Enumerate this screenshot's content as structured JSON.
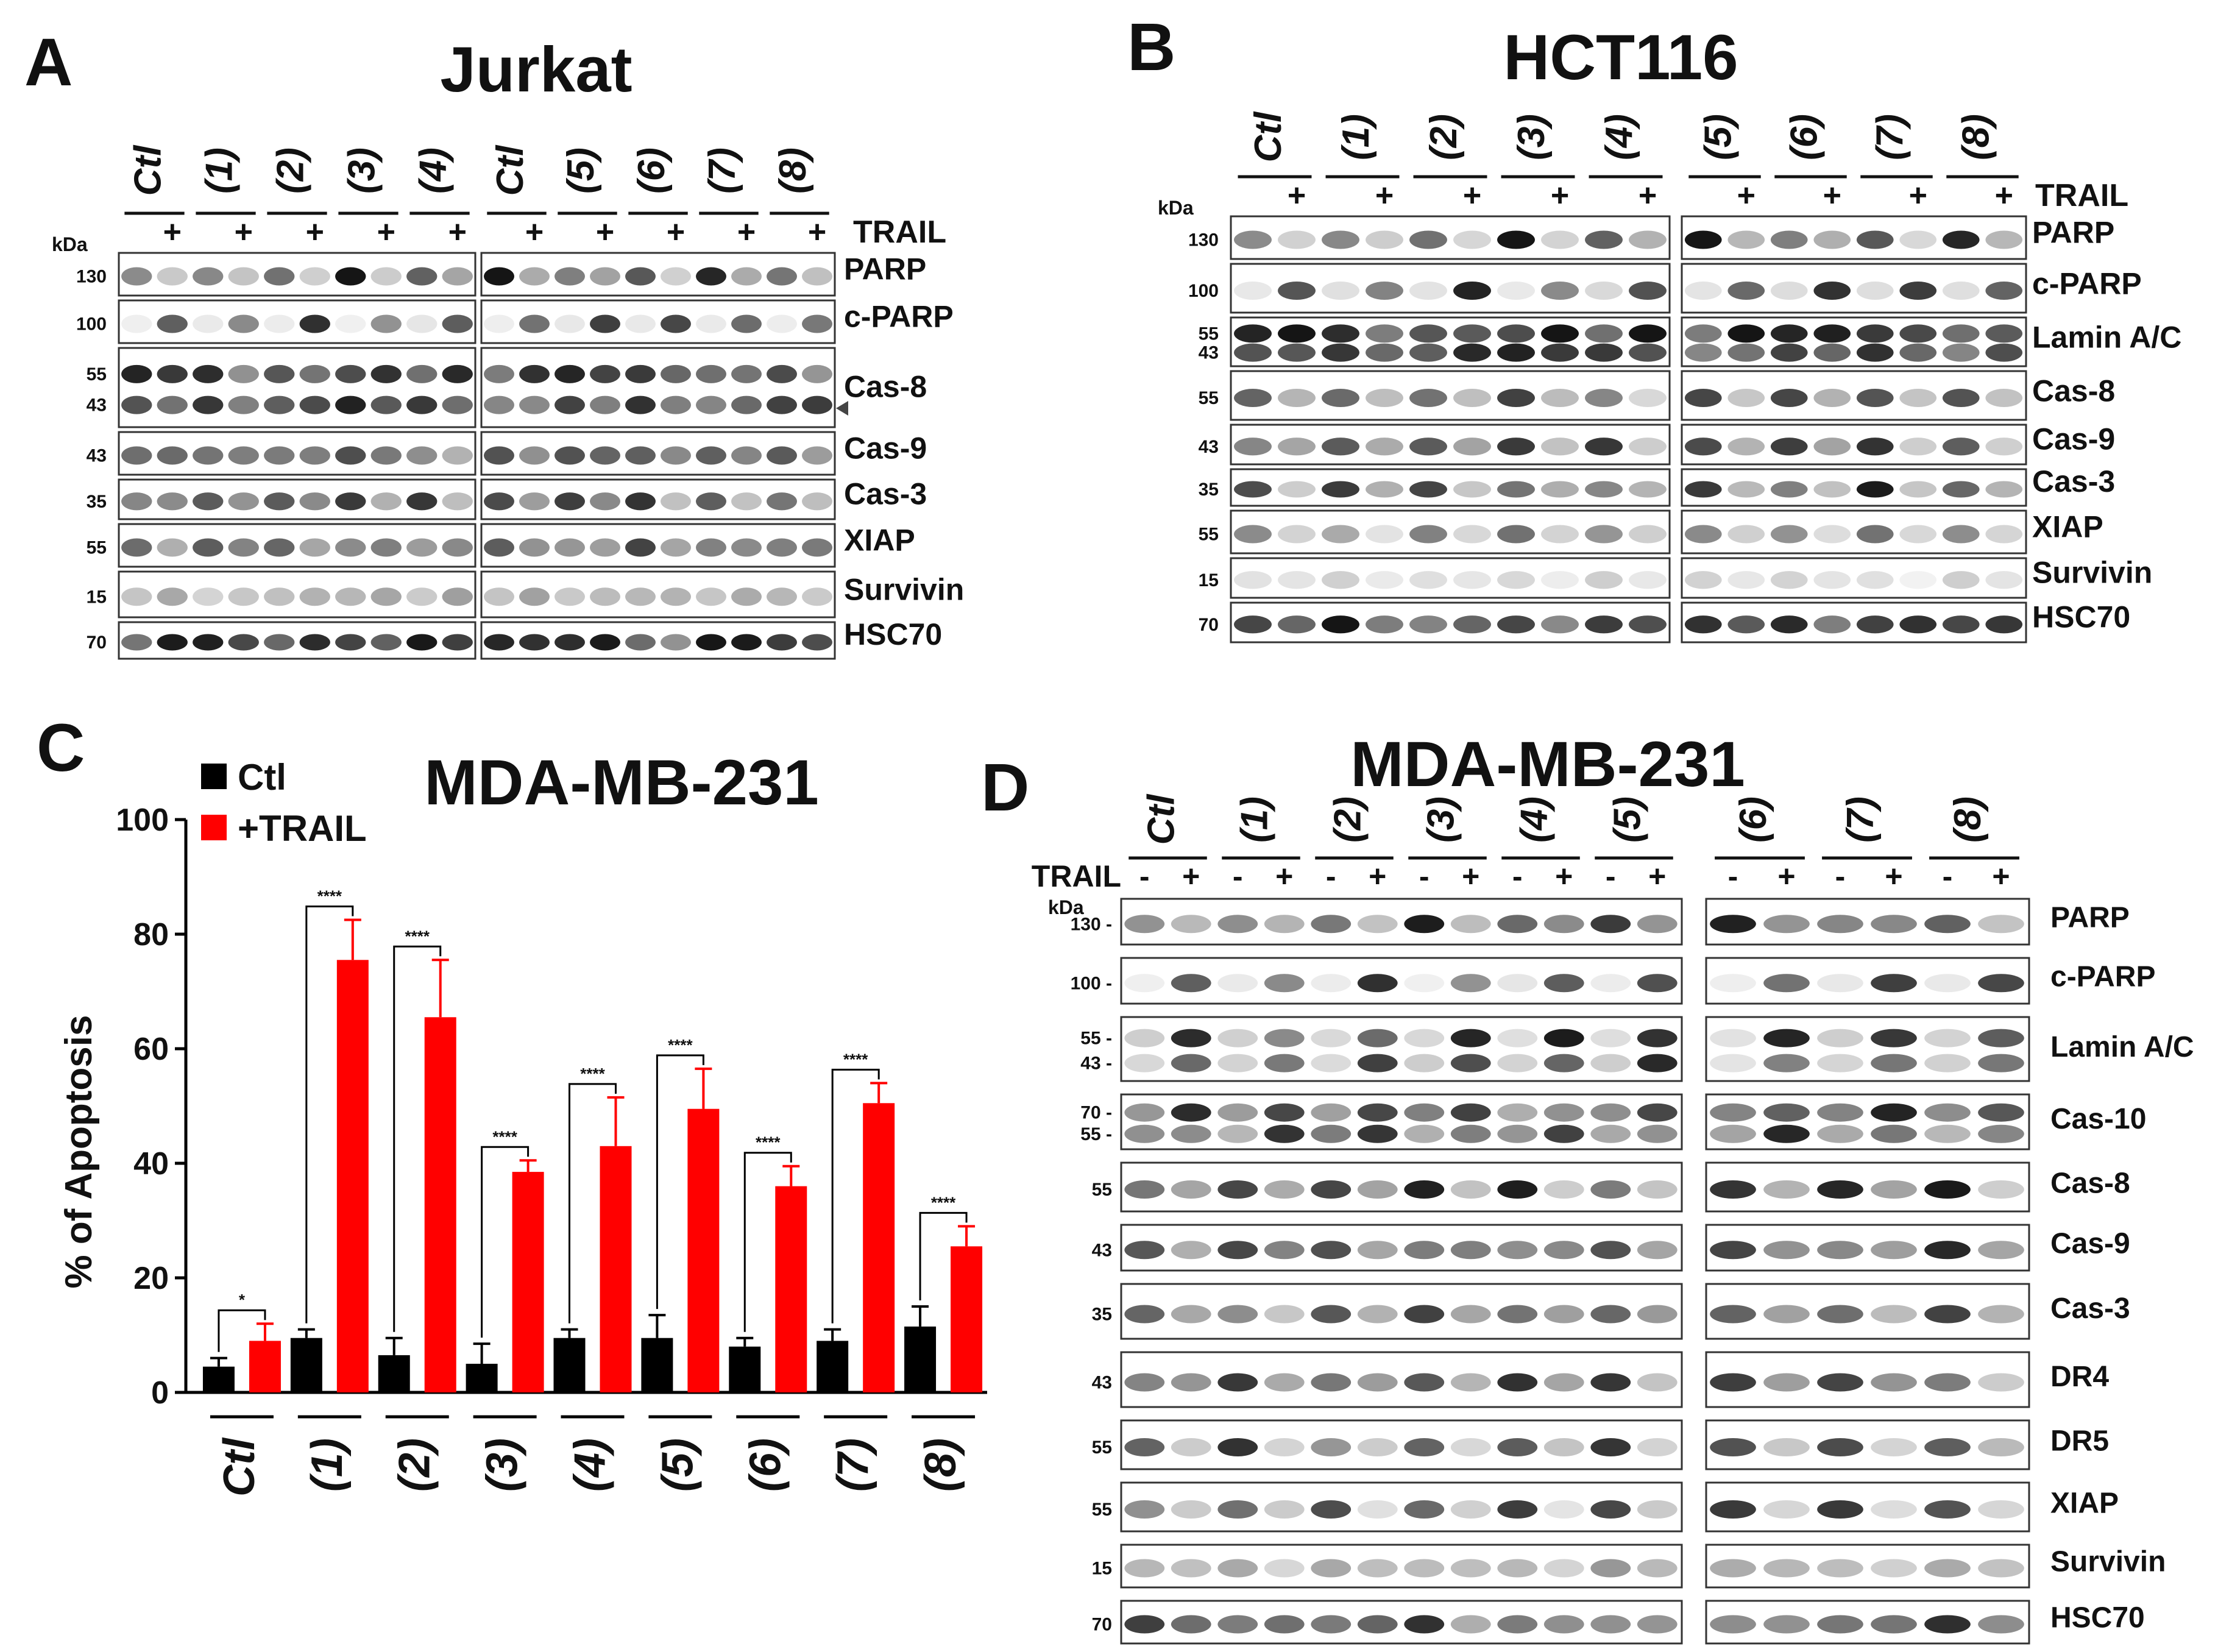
{
  "panels": {
    "A": {
      "letter": "A",
      "title": "Jurkat",
      "groups_left": [
        "Ctl",
        "(1)",
        "(2)",
        "(3)",
        "(4)"
      ],
      "groups_right": [
        "Ctl",
        "(5)",
        "(6)",
        "(7)",
        "(8)"
      ],
      "plus": "+",
      "trail": "TRAIL",
      "kda": "kDa",
      "rows": [
        {
          "label": "PARP",
          "mw": [
            "130"
          ]
        },
        {
          "label": "c-PARP",
          "mw": [
            "100"
          ]
        },
        {
          "label": "Cas-8",
          "mw": [
            "55",
            "43"
          ]
        },
        {
          "label": "Cas-9",
          "mw": [
            "43"
          ]
        },
        {
          "label": "Cas-3",
          "mw": [
            "35"
          ]
        },
        {
          "label": "XIAP",
          "mw": [
            "55"
          ]
        },
        {
          "label": "Survivin",
          "mw": [
            "15"
          ]
        },
        {
          "label": "HSC70",
          "mw": [
            "70"
          ]
        }
      ]
    },
    "B": {
      "letter": "B",
      "title": "HCT116",
      "groups_left": [
        "Ctl",
        "(1)",
        "(2)",
        "(3)",
        "(4)"
      ],
      "groups_right": [
        "(5)",
        "(6)",
        "(7)",
        "(8)"
      ],
      "plus": "+",
      "trail": "TRAIL",
      "kda": "kDa",
      "rows": [
        {
          "label": "PARP",
          "mw": [
            "130"
          ]
        },
        {
          "label": "c-PARP",
          "mw": [
            "100"
          ]
        },
        {
          "label": "Lamin A/C",
          "mw": [
            "55",
            "43"
          ]
        },
        {
          "label": "Cas-8",
          "mw": [
            "55"
          ]
        },
        {
          "label": "Cas-9",
          "mw": [
            "43"
          ]
        },
        {
          "label": "Cas-3",
          "mw": [
            "35"
          ]
        },
        {
          "label": "XIAP",
          "mw": [
            "55"
          ]
        },
        {
          "label": "Survivin",
          "mw": [
            "15"
          ]
        },
        {
          "label": "HSC70",
          "mw": [
            "70"
          ]
        }
      ]
    },
    "C": {
      "letter": "C",
      "title": "MDA-MB-231",
      "legend": [
        "Ctl",
        "+TRAIL"
      ],
      "ylabel": "% of Apoptosis"
    },
    "D": {
      "letter": "D",
      "title": "MDA-MB-231",
      "groups_left": [
        "Ctl",
        "(1)",
        "(2)",
        "(3)",
        "(4)",
        "(5)"
      ],
      "groups_right": [
        "(6)",
        "(7)",
        "(8)"
      ],
      "minus": "-",
      "plus": "+",
      "trail": "TRAIL",
      "kda": "kDa",
      "rows": [
        {
          "label": "PARP",
          "mw": [
            "130 -"
          ]
        },
        {
          "label": "c-PARP",
          "mw": [
            "100 -"
          ]
        },
        {
          "label": "Lamin A/C",
          "mw": [
            "55 -",
            "43 -"
          ]
        },
        {
          "label": "Cas-10",
          "mw": [
            "70 -",
            "55 -"
          ]
        },
        {
          "label": "Cas-8",
          "mw": [
            "55"
          ]
        },
        {
          "label": "Cas-9",
          "mw": [
            "43"
          ]
        },
        {
          "label": "Cas-3",
          "mw": [
            "35"
          ]
        },
        {
          "label": "DR4",
          "mw": [
            "43"
          ]
        },
        {
          "label": "DR5",
          "mw": [
            "55"
          ]
        },
        {
          "label": "XIAP",
          "mw": [
            "55"
          ]
        },
        {
          "label": "Survivin",
          "mw": [
            "15"
          ]
        },
        {
          "label": "HSC70",
          "mw": [
            "70"
          ]
        }
      ]
    }
  },
  "colors": {
    "ctl": "#000000",
    "trail": "#ff0000",
    "band": "#151515"
  },
  "chart_data": {
    "type": "bar",
    "title": "MDA-MB-231",
    "xlabel": "",
    "ylabel": "% of Apoptosis",
    "categories": [
      "Ctl",
      "(1)",
      "(2)",
      "(3)",
      "(4)",
      "(5)",
      "(6)",
      "(7)",
      "(8)"
    ],
    "ylim": [
      0,
      100
    ],
    "yticks": [
      0,
      20,
      40,
      60,
      80,
      100
    ],
    "series": [
      {
        "name": "Ctl",
        "color": "#000000",
        "values": [
          4.5,
          9.5,
          6.5,
          5,
          9.5,
          9.5,
          8,
          9,
          11.5
        ],
        "errors": [
          1.5,
          1.5,
          3,
          3.5,
          1.5,
          4,
          1.5,
          2,
          3.5
        ]
      },
      {
        "name": "+TRAIL",
        "color": "#ff0000",
        "values": [
          9,
          75.5,
          65.5,
          38.5,
          43,
          49.5,
          36,
          50.5,
          25.5
        ],
        "errors": [
          3,
          7,
          10,
          2,
          8.5,
          7,
          3.5,
          3.5,
          3.5
        ]
      }
    ],
    "significance": [
      "*",
      "****",
      "****",
      "****",
      "****",
      "****",
      "****",
      "****",
      "****"
    ],
    "legend_position": "top-left"
  }
}
